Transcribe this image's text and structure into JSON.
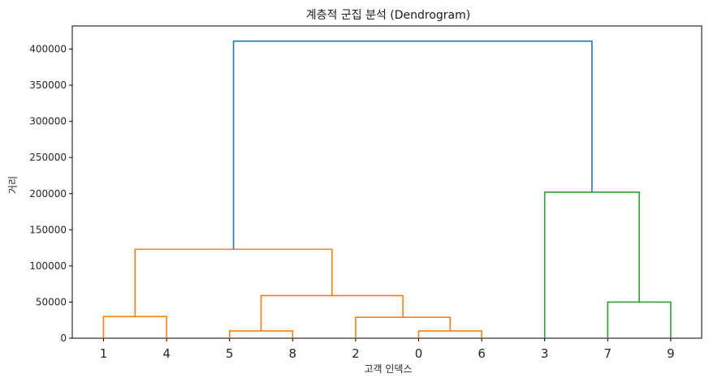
{
  "chart_data": {
    "type": "dendrogram",
    "title": "계층적 군집 분석 (Dendrogram)",
    "xlabel": "고객 인덱스",
    "ylabel": "거리",
    "leaf_order": [
      "1",
      "4",
      "5",
      "8",
      "2",
      "0",
      "6",
      "3",
      "7",
      "9"
    ],
    "ylim": [
      0,
      432000
    ],
    "yticks": [
      0,
      50000,
      100000,
      150000,
      200000,
      250000,
      300000,
      350000,
      400000
    ],
    "grid": false,
    "colors": {
      "cluster_a": "#ff7f0e",
      "cluster_b": "#2ca02c",
      "root": "#1f77b4"
    },
    "merges": [
      {
        "left": "leaf:1",
        "right": "leaf:4",
        "height": 30000,
        "color": "cluster_a"
      },
      {
        "left": "leaf:5",
        "right": "leaf:8",
        "height": 10000,
        "color": "cluster_a"
      },
      {
        "left": "leaf:0",
        "right": "leaf:6",
        "height": 10000,
        "color": "cluster_a"
      },
      {
        "left": "leaf:2",
        "right": "node:2",
        "height": 29000,
        "color": "cluster_a"
      },
      {
        "left": "node:1",
        "right": "node:3",
        "height": 59000,
        "color": "cluster_a"
      },
      {
        "left": "node:0",
        "right": "node:4",
        "height": 123000,
        "color": "cluster_a"
      },
      {
        "left": "leaf:7",
        "right": "leaf:9",
        "height": 50000,
        "color": "cluster_b"
      },
      {
        "left": "leaf:3",
        "right": "node:6",
        "height": 202000,
        "color": "cluster_b"
      },
      {
        "left": "node:5",
        "right": "node:7",
        "height": 411000,
        "color": "root"
      }
    ]
  }
}
